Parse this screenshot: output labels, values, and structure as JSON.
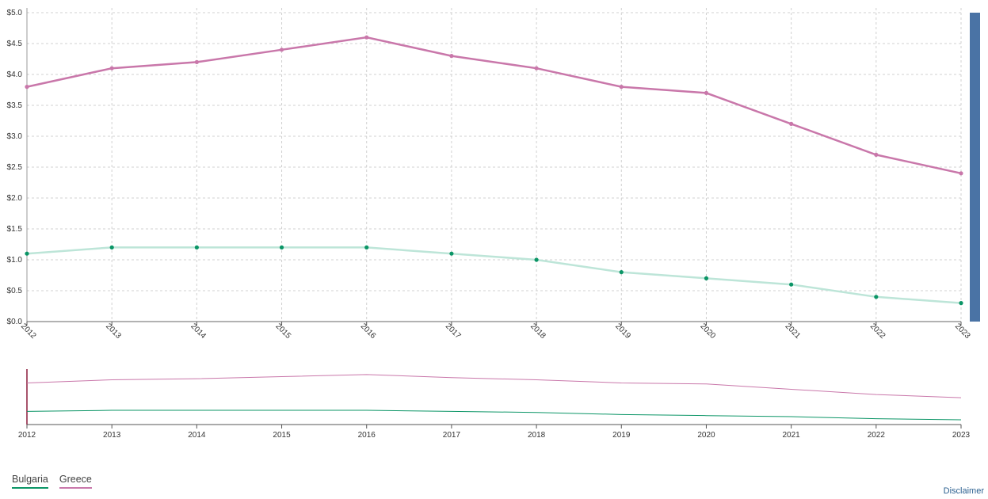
{
  "chart_data": {
    "type": "line",
    "x": [
      2012,
      2013,
      2014,
      2015,
      2016,
      2017,
      2018,
      2019,
      2020,
      2021,
      2022,
      2023
    ],
    "series": [
      {
        "name": "Bulgaria",
        "values": [
          1.1,
          1.2,
          1.2,
          1.2,
          1.2,
          1.1,
          1.0,
          0.8,
          0.7,
          0.6,
          0.4,
          0.3
        ]
      },
      {
        "name": "Greece",
        "values": [
          3.8,
          4.1,
          4.2,
          4.4,
          4.6,
          4.3,
          4.1,
          3.8,
          3.7,
          3.2,
          2.7,
          2.4
        ]
      }
    ],
    "ylim": [
      0,
      5
    ],
    "yticks": [
      0,
      0.5,
      1.0,
      1.5,
      2.0,
      2.5,
      3.0,
      3.5,
      4.0,
      4.5,
      5.0
    ],
    "ytick_labels": [
      "$0.0",
      "$0.5",
      "$1.0",
      "$1.5",
      "$2.0",
      "$2.5",
      "$3.0",
      "$3.5",
      "$4.0",
      "$4.5",
      "$5.0"
    ],
    "grid": true,
    "legend_position": "bottom-left",
    "has_overview_brush": true
  },
  "colors": {
    "Bulgaria_line": "#bde5d8",
    "Bulgaria_marker": "#0b9566",
    "Bulgaria_overview": "#0b9566",
    "Greece_line": "#c977aa",
    "Greece_marker": "#c977aa",
    "Greece_overview": "#c977aa",
    "scrollbar": "#4a73a5",
    "grid": "#d0d0d0"
  },
  "legend": {
    "items": [
      "Bulgaria",
      "Greece"
    ]
  },
  "footer": {
    "disclaimer": "Disclaimer"
  }
}
